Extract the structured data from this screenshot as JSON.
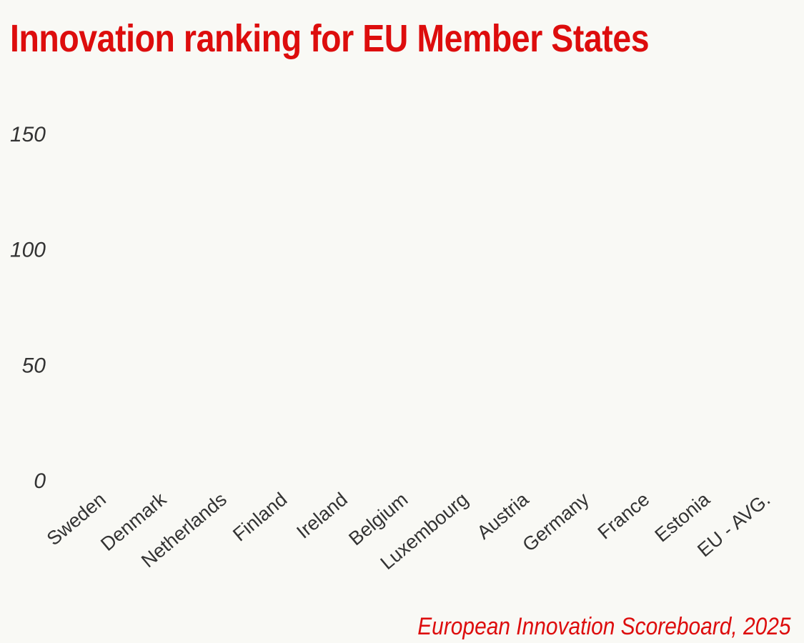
{
  "header": {
    "title": "Innovation ranking for EU Member States"
  },
  "footer": {
    "source": "European Innovation Scoreboard, 2025"
  },
  "colors": {
    "accent": "#dd0d0d",
    "background": "#f9f9f5",
    "axis_text": "#333333"
  },
  "chart_data": {
    "type": "bar",
    "title": "Innovation ranking for EU Member States",
    "xlabel": "",
    "ylabel": "",
    "categories": [
      "Sweden",
      "Denmark",
      "Netherlands",
      "Finland",
      "Ireland",
      "Belgium",
      "Luxembourg",
      "Austria",
      "Germany",
      "France",
      "Estonia",
      "EU - AVG."
    ],
    "values": [
      0,
      0,
      0,
      0,
      0,
      0,
      0,
      0,
      0,
      0,
      0,
      0
    ],
    "y_ticks": [
      "0",
      "50",
      "100",
      "150"
    ],
    "ylim": [
      0,
      150
    ],
    "grid": false,
    "legend": "none"
  }
}
